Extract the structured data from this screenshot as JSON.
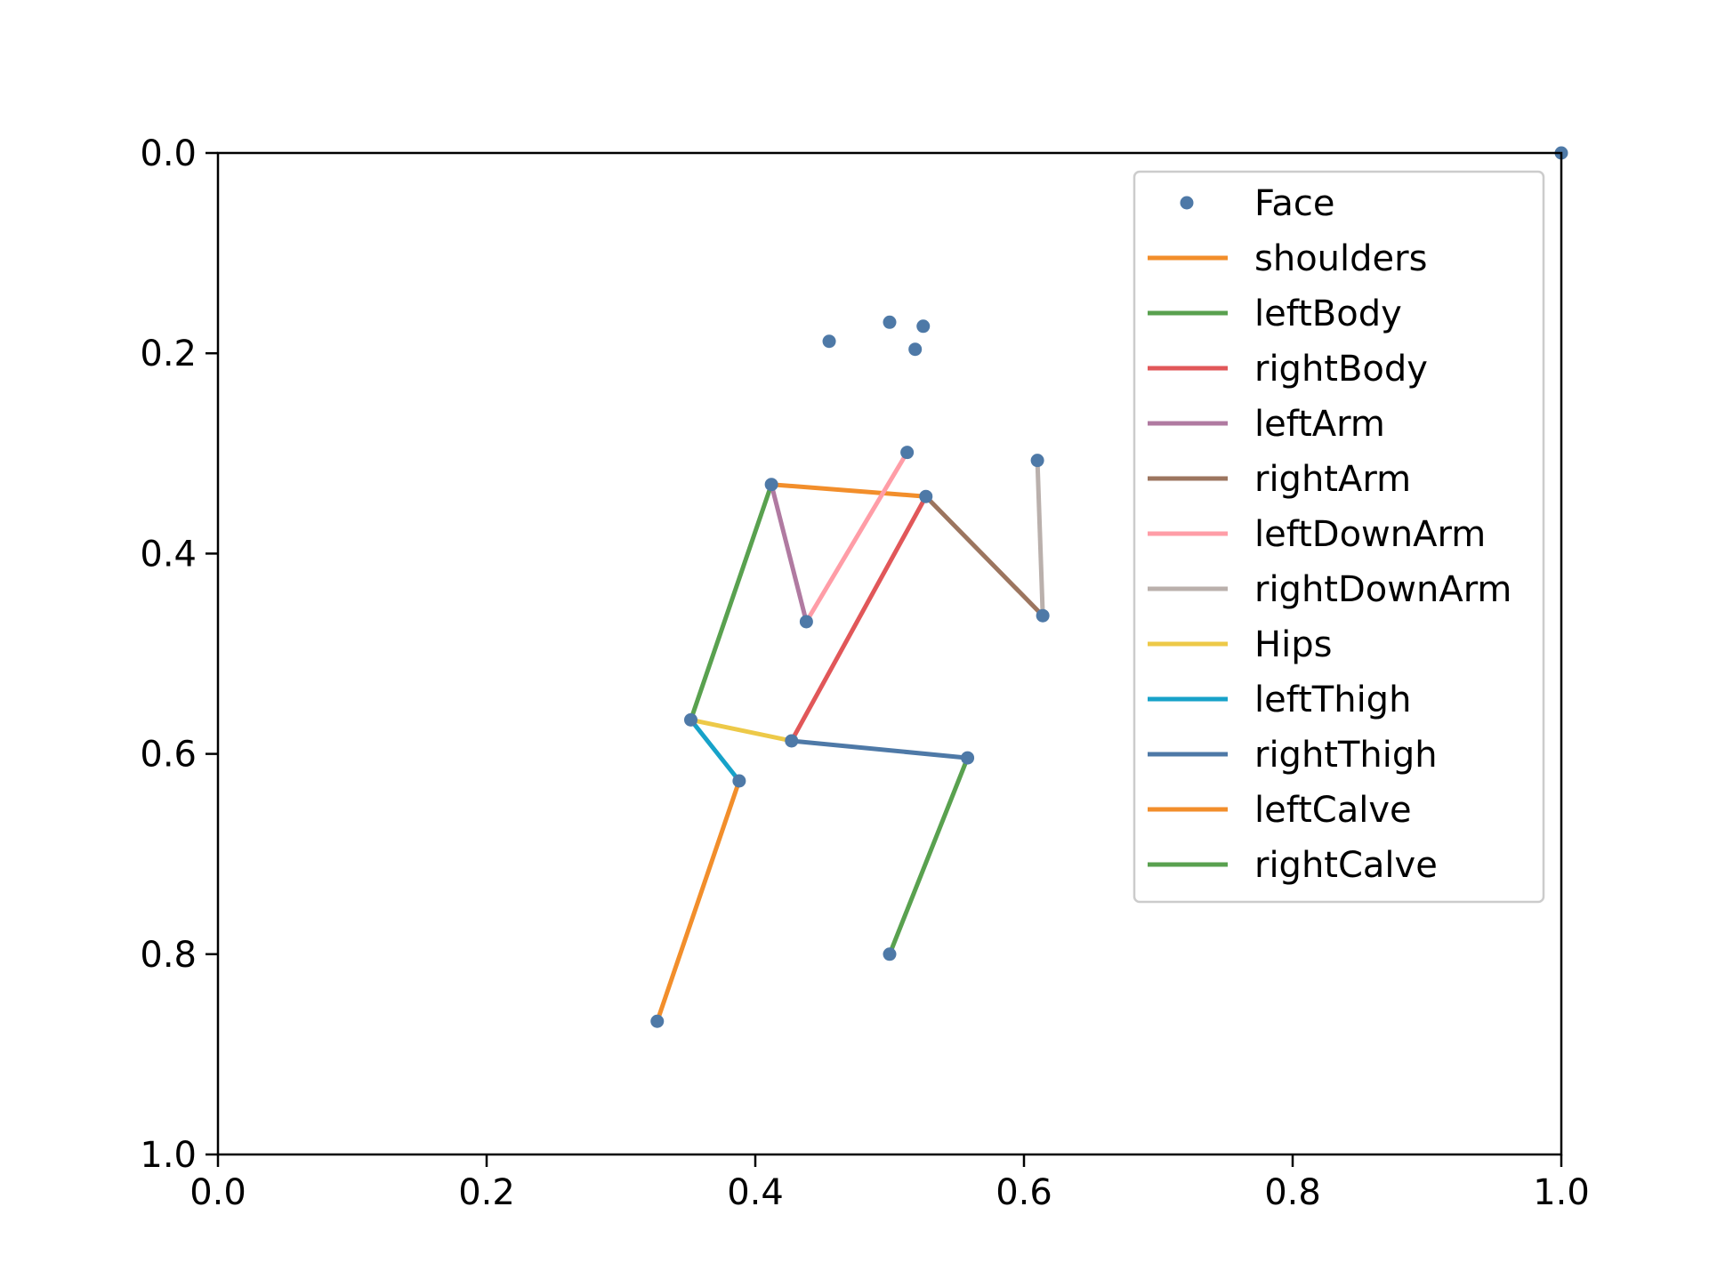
{
  "chart_data": {
    "type": "scatter",
    "title": "",
    "xlabel": "",
    "ylabel": "",
    "xlim": [
      0.0,
      1.0
    ],
    "ylim": [
      0.0,
      1.0
    ],
    "y_inverted": true,
    "grid": false,
    "legend_position": "top-right",
    "x_ticks": [
      "0.0",
      "0.2",
      "0.4",
      "0.6",
      "0.8",
      "1.0"
    ],
    "y_ticks": [
      "0.0",
      "0.2",
      "0.4",
      "0.6",
      "0.8",
      "1.0"
    ],
    "points": {
      "name": "Face",
      "color": "#4e79a7",
      "x": [
        0.455,
        0.5,
        0.525,
        0.519,
        0.513,
        0.412,
        0.527,
        0.438,
        0.61,
        0.614,
        0.352,
        0.427,
        0.388,
        0.558,
        0.327,
        0.5,
        1.0
      ],
      "y": [
        0.188,
        0.169,
        0.173,
        0.196,
        0.299,
        0.331,
        0.343,
        0.468,
        0.307,
        0.462,
        0.566,
        0.587,
        0.627,
        0.604,
        0.867,
        0.8,
        0.0
      ]
    },
    "segments": [
      {
        "name": "shoulders",
        "color": "#f28e2b",
        "x": [
          0.412,
          0.527
        ],
        "y": [
          0.331,
          0.343
        ]
      },
      {
        "name": "leftBody",
        "color": "#59a14f",
        "x": [
          0.412,
          0.352
        ],
        "y": [
          0.331,
          0.566
        ]
      },
      {
        "name": "rightBody",
        "color": "#e15759",
        "x": [
          0.527,
          0.427
        ],
        "y": [
          0.343,
          0.587
        ]
      },
      {
        "name": "leftArm",
        "color": "#b07aa1",
        "x": [
          0.412,
          0.438
        ],
        "y": [
          0.331,
          0.468
        ]
      },
      {
        "name": "rightArm",
        "color": "#9c755f",
        "x": [
          0.527,
          0.614
        ],
        "y": [
          0.343,
          0.462
        ]
      },
      {
        "name": "leftDownArm",
        "color": "#ff9da7",
        "x": [
          0.438,
          0.513
        ],
        "y": [
          0.468,
          0.299
        ]
      },
      {
        "name": "rightDownArm",
        "color": "#bab0ac",
        "x": [
          0.614,
          0.61
        ],
        "y": [
          0.462,
          0.307
        ]
      },
      {
        "name": "Hips",
        "color": "#edc948",
        "x": [
          0.352,
          0.427
        ],
        "y": [
          0.566,
          0.587
        ]
      },
      {
        "name": "leftThigh",
        "color": "#17a2c9",
        "x": [
          0.352,
          0.388
        ],
        "y": [
          0.566,
          0.627
        ]
      },
      {
        "name": "rightThigh",
        "color": "#4e79a7",
        "x": [
          0.427,
          0.558
        ],
        "y": [
          0.587,
          0.604
        ]
      },
      {
        "name": "leftCalve",
        "color": "#f28e2b",
        "x": [
          0.388,
          0.327
        ],
        "y": [
          0.627,
          0.867
        ]
      },
      {
        "name": "rightCalve",
        "color": "#59a14f",
        "x": [
          0.558,
          0.5
        ],
        "y": [
          0.604,
          0.8
        ]
      }
    ]
  }
}
